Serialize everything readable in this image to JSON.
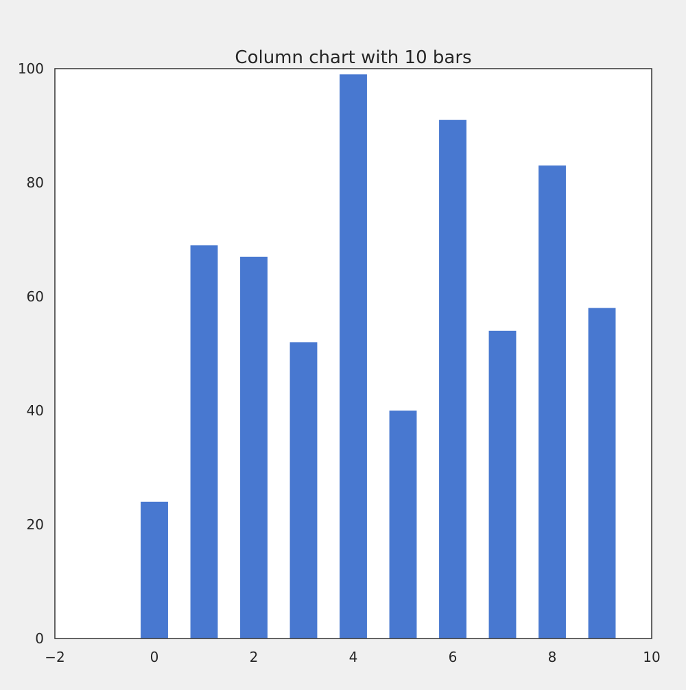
{
  "chart_data": {
    "type": "bar",
    "title": "Column chart with 10 bars",
    "xlabel": "",
    "ylabel": "",
    "x": [
      0,
      1,
      2,
      3,
      4,
      5,
      6,
      7,
      8,
      9
    ],
    "values": [
      24,
      69,
      67,
      52,
      99,
      40,
      91,
      54,
      83,
      58
    ],
    "bar_width": 0.55,
    "xlim": [
      -2,
      10
    ],
    "ylim": [
      0,
      100
    ],
    "xticks": [
      -2,
      0,
      2,
      4,
      6,
      8,
      10
    ],
    "xtick_labels": [
      "−2",
      "0",
      "2",
      "4",
      "6",
      "8",
      "10"
    ],
    "yticks": [
      0,
      20,
      40,
      60,
      80,
      100
    ],
    "ytick_labels": [
      "0",
      "20",
      "40",
      "60",
      "80",
      "100"
    ],
    "grid": false,
    "legend": "none",
    "colors": {
      "bar": "#4878d0",
      "background": "#f0f0f0",
      "plot_area": "#ffffff",
      "axes": "#333333",
      "text": "#262626"
    }
  }
}
